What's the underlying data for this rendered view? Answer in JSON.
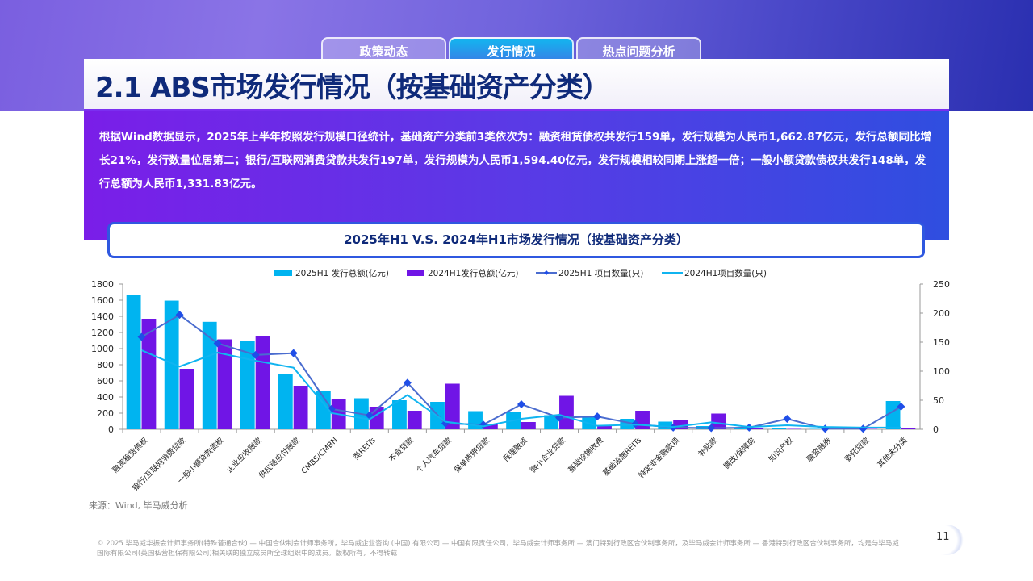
{
  "tabs": [
    {
      "label": "政策动态"
    },
    {
      "label": "发行情况"
    },
    {
      "label": "热点问题分析"
    }
  ],
  "header": {
    "title": "2.1 ABS市场发行情况（按基础资产分类）"
  },
  "summary": "根据Wind数据显示，2025年上半年按照发行规模口径统计，基础资产分类前3类依次为：融资租赁债权共发行159单，发行规模为人民币1,662.87亿元，发行总额同比增长21%，发行数量位居第二；银行/互联网消费贷款共发行197单，发行规模为人民币1,594.40亿元，发行规模相较同期上涨超一倍；一般小额贷款债权共发行148单，发行总额为人民币1,331.83亿元。",
  "source": "来源：Wind, 毕马威分析",
  "footer": "© 2025 毕马威华振会计师事务所(特殊普通合伙) — 中国合伙制会计师事务所，毕马威企业咨询 (中国) 有限公司 — 中国有限责任公司，毕马威会计师事务所 — 澳门特别行政区合伙制事务所，及毕马威会计师事务所 — 香港特别行政区合伙制事务所，均是与毕马威国际有限公司(英国私营担保有限公司)相关联的独立成员所全球组织中的成员。版权所有，不得转载",
  "page_number": "11",
  "chart_data": {
    "type": "bar",
    "title": "2025年H1 V.S. 2024年H1市场发行情况（按基础资产分类）",
    "categories": [
      "融资租赁债权",
      "银行/互联网消费贷款",
      "一般小额贷款债权",
      "企业应收账款",
      "供应链应付账款",
      "CMBS/CMBN",
      "类REITs",
      "不良贷款",
      "个人汽车贷款",
      "保单质押贷款",
      "保理融资",
      "微小企业贷款",
      "基础设施收费",
      "基础设施REITs",
      "特定非金融款项",
      "补贴款",
      "棚改/保障房",
      "知识产权",
      "融资融券",
      "委托贷款",
      "其他未分类"
    ],
    "series": [
      {
        "name": "2025H1 发行总额(亿元)",
        "type": "bar",
        "axis": "left",
        "color": "#00b4f0",
        "values": [
          1662.87,
          1594.4,
          1331.83,
          1100,
          690,
          475,
          385,
          360,
          340,
          225,
          215,
          175,
          160,
          130,
          95,
          40,
          20,
          10,
          5,
          5,
          350
        ]
      },
      {
        "name": "2024H1发行总额(亿元)",
        "type": "bar",
        "axis": "left",
        "color": "#7015e6",
        "values": [
          1370,
          750,
          1115,
          1150,
          540,
          370,
          280,
          230,
          565,
          60,
          90,
          415,
          50,
          230,
          115,
          195,
          10,
          5,
          5,
          5,
          20
        ]
      },
      {
        "name": "2025H1 项目数量(只)",
        "type": "line",
        "marker": "diamond",
        "axis": "right",
        "color": "#4a6ccf",
        "values": [
          159,
          197,
          148,
          128,
          131,
          35,
          24,
          80,
          10,
          8,
          43,
          20,
          22,
          9,
          3,
          2,
          3,
          18,
          1,
          1,
          39
        ]
      },
      {
        "name": "2024H1项目数量(只)",
        "type": "line",
        "axis": "right",
        "color": "#10b4f0",
        "values": [
          136,
          108,
          132,
          118,
          106,
          28,
          17,
          59,
          13,
          5,
          18,
          25,
          6,
          8,
          4,
          12,
          4,
          7,
          4,
          3,
          3
        ]
      }
    ],
    "y_left": {
      "range": [
        0,
        1800
      ],
      "ticks": [
        0,
        200,
        400,
        600,
        800,
        1000,
        1200,
        1400,
        1600,
        1800
      ]
    },
    "y_right": {
      "range": [
        0,
        250
      ],
      "ticks": [
        0,
        50,
        100,
        150,
        200,
        250
      ]
    },
    "legend": "top",
    "grid": false
  }
}
